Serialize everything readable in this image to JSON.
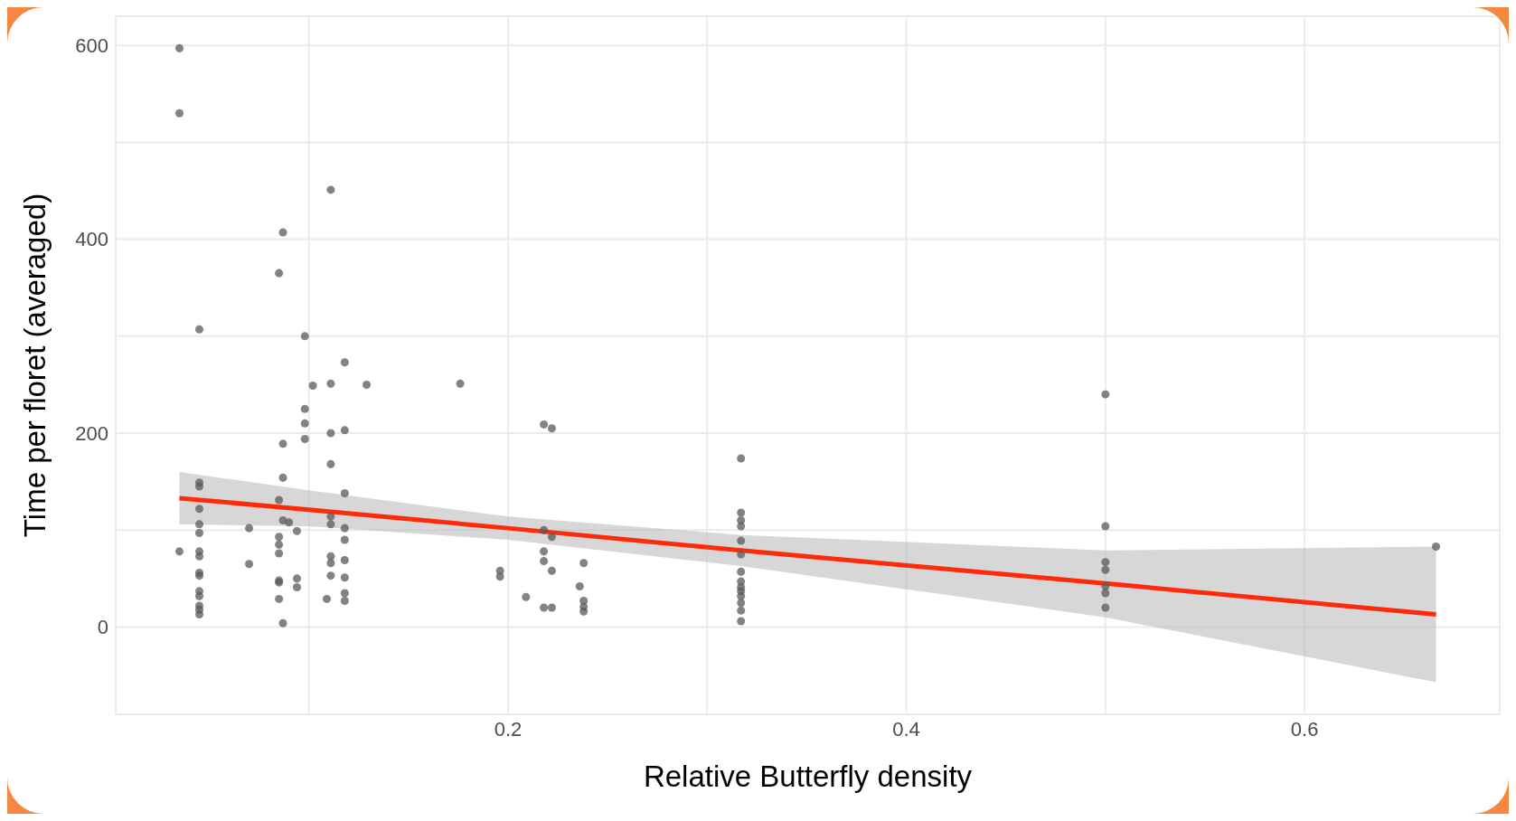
{
  "chart_data": {
    "type": "scatter",
    "xlabel": "Relative Butterfly density",
    "ylabel": "Time per floret (averaged)",
    "xlim": [
      0.003,
      0.698
    ],
    "ylim": [
      -90,
      630
    ],
    "xticks": [
      {
        "value": 0.1,
        "label": null
      },
      0.2,
      {
        "value": 0.3,
        "label": null
      },
      0.4,
      {
        "value": 0.5,
        "label": null
      },
      0.6
    ],
    "yticks": [
      0,
      {
        "value": 100,
        "label": null
      },
      200,
      {
        "value": 300,
        "label": null
      },
      400,
      {
        "value": 500,
        "label": null
      },
      600
    ],
    "grid": true,
    "series": [
      {
        "marker": "circle",
        "color": "#5a5a5a",
        "x": [
          0.035,
          0.035,
          0.035,
          0.045,
          0.045,
          0.045,
          0.045,
          0.045,
          0.045,
          0.045,
          0.045,
          0.045,
          0.045,
          0.045,
          0.045,
          0.045,
          0.045,
          0.045,
          0.07,
          0.07,
          0.085,
          0.085,
          0.085,
          0.085,
          0.085,
          0.085,
          0.085,
          0.085,
          0.087,
          0.087,
          0.087,
          0.087,
          0.087,
          0.09,
          0.094,
          0.094,
          0.094,
          0.098,
          0.098,
          0.098,
          0.098,
          0.102,
          0.109,
          0.111,
          0.111,
          0.111,
          0.111,
          0.111,
          0.111,
          0.111,
          0.111,
          0.111,
          0.118,
          0.118,
          0.118,
          0.118,
          0.118,
          0.118,
          0.118,
          0.118,
          0.118,
          0.129,
          0.176,
          0.196,
          0.196,
          0.209,
          0.218,
          0.218,
          0.218,
          0.218,
          0.218,
          0.222,
          0.222,
          0.222,
          0.222,
          0.236,
          0.238,
          0.238,
          0.238,
          0.238,
          0.317,
          0.317,
          0.317,
          0.317,
          0.317,
          0.317,
          0.317,
          0.317,
          0.317,
          0.317,
          0.317,
          0.317,
          0.317,
          0.317,
          0.5,
          0.5,
          0.5,
          0.5,
          0.5,
          0.5,
          0.5,
          0.666
        ],
        "values": [
          597,
          530,
          78,
          307,
          149,
          145,
          122,
          106,
          97,
          78,
          73,
          56,
          53,
          37,
          32,
          22,
          18,
          13,
          102,
          65,
          131,
          93,
          85,
          76,
          48,
          46,
          29,
          365,
          189,
          154,
          110,
          4,
          407,
          108,
          99,
          50,
          41,
          300,
          225,
          210,
          194,
          249,
          29,
          451,
          251,
          200,
          168,
          114,
          106,
          73,
          66,
          53,
          273,
          203,
          138,
          102,
          90,
          69,
          51,
          35,
          27,
          250,
          251,
          58,
          52,
          31,
          209,
          100,
          78,
          68,
          20,
          205,
          93,
          58,
          20,
          42,
          66,
          27,
          21,
          16,
          174,
          118,
          110,
          104,
          89,
          75,
          57,
          47,
          41,
          37,
          32,
          25,
          17,
          6,
          240,
          104,
          67,
          59,
          42,
          35,
          20,
          83
        ]
      },
      {
        "type": "line",
        "color": "#ff2a0a",
        "x": [
          0.035,
          0.1,
          0.2,
          0.317,
          0.5,
          0.666
        ],
        "values": [
          133,
          121,
          102,
          79,
          45,
          13
        ],
        "lower": [
          106,
          104,
          90,
          63,
          10,
          -57
        ],
        "upper": [
          160,
          141,
          114,
          95,
          79,
          83
        ]
      }
    ]
  }
}
